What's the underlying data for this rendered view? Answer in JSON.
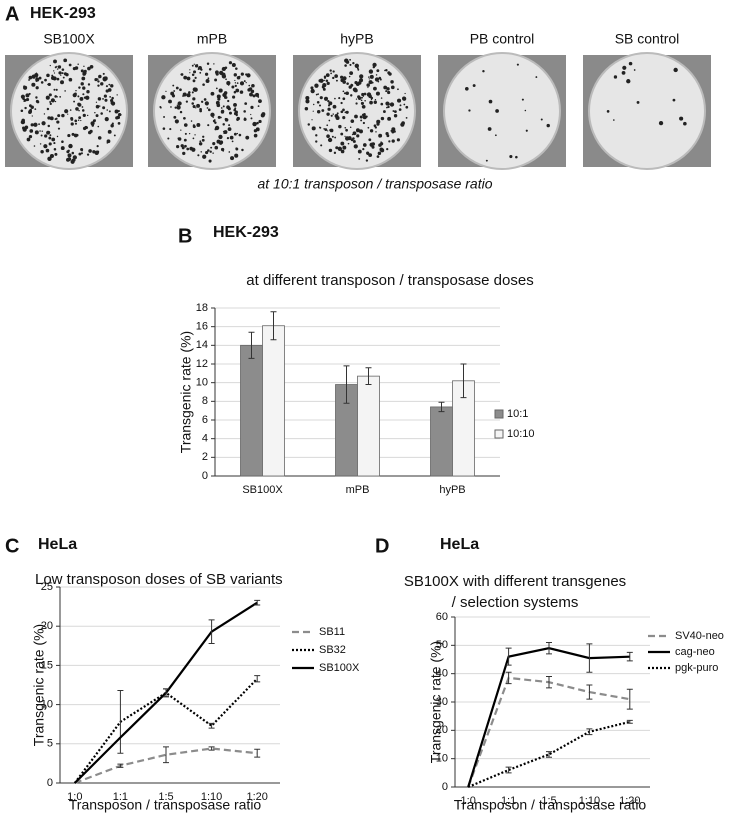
{
  "panel_a": {
    "panel": "A",
    "subtitle": "HEK-293",
    "plates": [
      "SB100X",
      "mPB",
      "hyPB",
      "PB control",
      "SB control"
    ],
    "caption": "at 10:1 transposon / transposase ratio"
  },
  "chart_data": [
    {
      "type": "bar",
      "panel": "B",
      "subtitle": "HEK-293",
      "title": "at different transposon / transposase doses",
      "ylabel": "Transgenic rate (%)",
      "categories": [
        "SB100X",
        "mPB",
        "hyPB"
      ],
      "series": [
        {
          "name": "10:1",
          "color": "#8c8c8c",
          "values": [
            14,
            9.8,
            7.4
          ],
          "errors": [
            1.4,
            2.0,
            0.5
          ]
        },
        {
          "name": "10:10",
          "color": "#f4f4f4",
          "values": [
            16.1,
            10.7,
            10.2
          ],
          "errors": [
            1.5,
            0.9,
            1.8
          ]
        }
      ],
      "ylim": [
        0,
        18
      ],
      "yticks": [
        0,
        2,
        4,
        6,
        8,
        10,
        12,
        14,
        16,
        18
      ],
      "grid": true
    },
    {
      "type": "line",
      "panel": "C",
      "subtitle": "HeLa",
      "title": "Low transposon doses of SB variants",
      "xlabel": "Transposon / transposase ratio",
      "ylabel": "Transgenic rate (%)",
      "categories": [
        "1:0",
        "1:1",
        "1:5",
        "1:10",
        "1:20"
      ],
      "series": [
        {
          "name": "SB11",
          "color": "#8c8c8c",
          "dash": "dashed",
          "values": [
            0,
            2.2,
            3.6,
            4.4,
            3.8
          ],
          "errors": [
            0,
            0.2,
            1.0,
            0.2,
            0.5
          ]
        },
        {
          "name": "SB32",
          "color": "#000000",
          "dash": "dotted",
          "values": [
            0,
            7.8,
            11.5,
            7.3,
            13.3
          ],
          "errors": [
            0,
            4,
            0.5,
            0.3,
            0.4
          ]
        },
        {
          "name": "SB100X",
          "color": "#000000",
          "dash": "solid",
          "values": [
            0,
            5.8,
            11.5,
            19.3,
            23
          ],
          "errors": [
            0,
            0,
            0.5,
            1.5,
            0.3
          ]
        }
      ],
      "ylim": [
        0,
        25
      ],
      "yticks": [
        0,
        5,
        10,
        15,
        20,
        25
      ],
      "grid": true
    },
    {
      "type": "line",
      "panel": "D",
      "subtitle": "HeLa",
      "title": [
        "SB100X with different transgenes",
        "/ selection systems"
      ],
      "xlabel": "Transposon / transposase ratio",
      "ylabel": "Transgenic rate (%)",
      "categories": [
        "1:0",
        "1:1",
        "1:5",
        "1:10",
        "1:20"
      ],
      "series": [
        {
          "name": "SV40-neo",
          "color": "#8c8c8c",
          "dash": "dashed",
          "values": [
            0,
            38.5,
            37,
            33.5,
            31
          ],
          "errors": [
            0,
            2,
            2,
            2.5,
            3.5
          ]
        },
        {
          "name": "cag-neo",
          "color": "#000000",
          "dash": "solid",
          "values": [
            0,
            46,
            49,
            45.5,
            46
          ],
          "errors": [
            0,
            3,
            2,
            5,
            1.5
          ]
        },
        {
          "name": "pgk-puro",
          "color": "#000000",
          "dash": "dotted",
          "values": [
            0,
            6,
            11.5,
            19.5,
            23
          ],
          "errors": [
            0,
            1,
            1,
            1,
            0.5
          ]
        }
      ],
      "ylim": [
        0,
        60
      ],
      "yticks": [
        0,
        10,
        20,
        30,
        40,
        50,
        60
      ],
      "grid": true
    }
  ]
}
